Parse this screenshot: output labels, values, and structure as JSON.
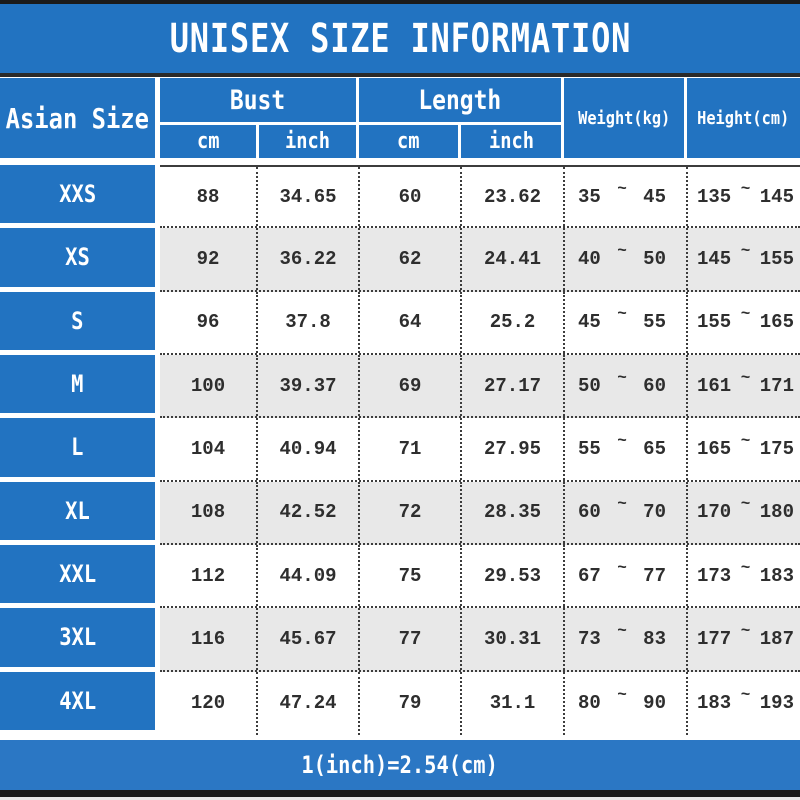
{
  "title": "UNISEX SIZE INFORMATION",
  "header": {
    "corner": "Asian Size",
    "bust": {
      "label": "Bust",
      "units": [
        "cm",
        "inch"
      ]
    },
    "length": {
      "label": "Length",
      "units": [
        "cm",
        "inch"
      ]
    },
    "weight": "Weight(kg)",
    "height": "Height(cm)"
  },
  "tilde": "~",
  "rows": [
    {
      "size": "XXS",
      "bust_cm": "88",
      "bust_inch": "34.65",
      "length_cm": "60",
      "length_inch": "23.62",
      "weight_min": "35",
      "weight_max": "45",
      "height_min": "135",
      "height_max": "145"
    },
    {
      "size": "XS",
      "bust_cm": "92",
      "bust_inch": "36.22",
      "length_cm": "62",
      "length_inch": "24.41",
      "weight_min": "40",
      "weight_max": "50",
      "height_min": "145",
      "height_max": "155"
    },
    {
      "size": "S",
      "bust_cm": "96",
      "bust_inch": "37.8",
      "length_cm": "64",
      "length_inch": "25.2",
      "weight_min": "45",
      "weight_max": "55",
      "height_min": "155",
      "height_max": "165"
    },
    {
      "size": "M",
      "bust_cm": "100",
      "bust_inch": "39.37",
      "length_cm": "69",
      "length_inch": "27.17",
      "weight_min": "50",
      "weight_max": "60",
      "height_min": "161",
      "height_max": "171"
    },
    {
      "size": "L",
      "bust_cm": "104",
      "bust_inch": "40.94",
      "length_cm": "71",
      "length_inch": "27.95",
      "weight_min": "55",
      "weight_max": "65",
      "height_min": "165",
      "height_max": "175"
    },
    {
      "size": "XL",
      "bust_cm": "108",
      "bust_inch": "42.52",
      "length_cm": "72",
      "length_inch": "28.35",
      "weight_min": "60",
      "weight_max": "70",
      "height_min": "170",
      "height_max": "180"
    },
    {
      "size": "XXL",
      "bust_cm": "112",
      "bust_inch": "44.09",
      "length_cm": "75",
      "length_inch": "29.53",
      "weight_min": "67",
      "weight_max": "77",
      "height_min": "173",
      "height_max": "183"
    },
    {
      "size": "3XL",
      "bust_cm": "116",
      "bust_inch": "45.67",
      "length_cm": "77",
      "length_inch": "30.31",
      "weight_min": "73",
      "weight_max": "83",
      "height_min": "177",
      "height_max": "187"
    },
    {
      "size": "4XL",
      "bust_cm": "120",
      "bust_inch": "47.24",
      "length_cm": "79",
      "length_inch": "31.1",
      "weight_min": "80",
      "weight_max": "90",
      "height_min": "183",
      "height_max": "193"
    }
  ],
  "footer": "1(inch)=2.54(cm)",
  "colors": {
    "blue": "#2273c1",
    "alt_row": "#e8e8e8",
    "bar": "#1b1b1b",
    "text": "#2e2e2e"
  }
}
